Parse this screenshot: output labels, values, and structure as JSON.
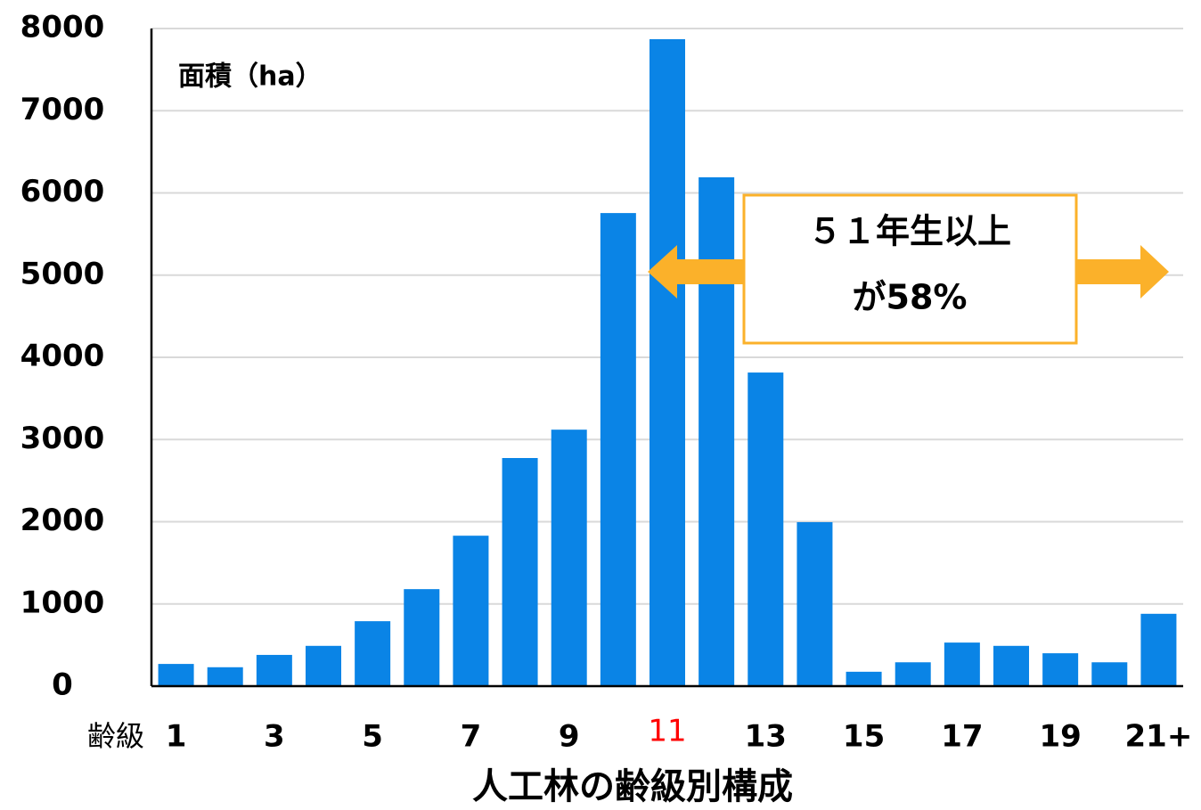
{
  "chart_data": {
    "type": "bar",
    "title": "人工林の齢級別構成",
    "y_label": "面積（ha）",
    "x_label": "齢級",
    "categories": [
      "1",
      null,
      "3",
      null,
      "5",
      null,
      "7",
      null,
      "9",
      null,
      "11",
      null,
      "13",
      null,
      "15",
      null,
      "17",
      null,
      "19",
      null,
      "21+"
    ],
    "values": [
      270,
      230,
      380,
      490,
      790,
      1180,
      1830,
      2775,
      3120,
      5755,
      7870,
      6190,
      3815,
      1995,
      175,
      290,
      530,
      490,
      400,
      290,
      880
    ],
    "color": "#0a84e6",
    "category_label_colors": [
      "#000000",
      "#000000",
      "#000000",
      "#000000",
      "#000000",
      "#000000",
      "#000000",
      "#000000",
      "#000000",
      "#000000",
      "#ff0000",
      "#000000",
      "#000000",
      "#000000",
      "#000000",
      "#000000",
      "#000000",
      "#000000",
      "#000000",
      "#000000",
      "#000000"
    ],
    "ylim": [
      0,
      8000
    ],
    "yticks": [
      0,
      1000,
      2000,
      3000,
      4000,
      5000,
      6000,
      7000,
      8000
    ],
    "grid": true,
    "annotation": {
      "lines": [
        "５１年生以上",
        "が58%"
      ]
    }
  }
}
